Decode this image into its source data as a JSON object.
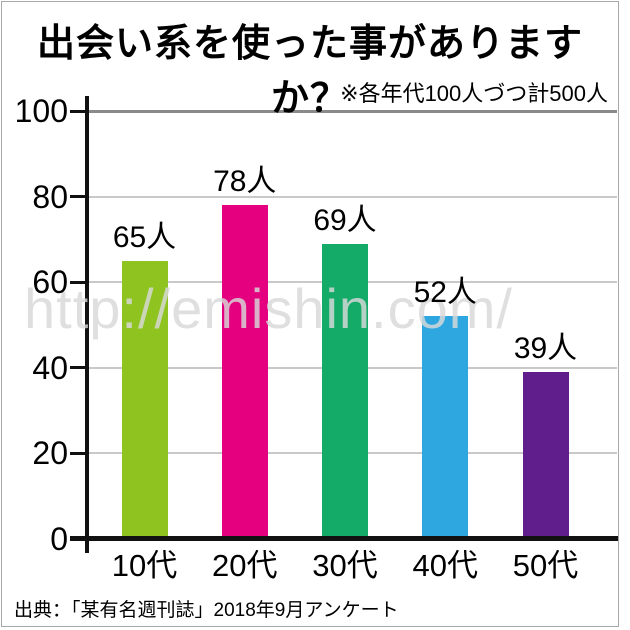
{
  "page": {
    "title": "出会い系を使った事がありますか？",
    "note": "※各年代100人づつ計500人",
    "watermark": "http://emishin.com/",
    "source": "出典：「某有名週刊誌」2018年9月アンケート"
  },
  "chart_data": {
    "type": "bar",
    "title": "出会い系を使った事がありますか？",
    "subtitle_note": "※各年代100人づつ計500人",
    "categories": [
      "10代",
      "20代",
      "30代",
      "40代",
      "50代"
    ],
    "values": [
      65,
      78,
      69,
      52,
      39
    ],
    "value_labels": [
      "65人",
      "78人",
      "69人",
      "52人",
      "39人"
    ],
    "unit_suffix": "人",
    "bar_colors": [
      "#8FC31F",
      "#E4007F",
      "#14AA67",
      "#2EA7E0",
      "#5F1E8C"
    ],
    "xlabel": "",
    "ylabel": "",
    "ylim": [
      0,
      100
    ],
    "yticks": [
      0,
      20,
      40,
      60,
      80,
      100
    ],
    "grid": "horizontal",
    "legend": "none",
    "source": "出典：「某有名週刊誌」2018年9月アンケート",
    "watermark": "http://emishin.com/"
  },
  "colors": {
    "grid_top": "#8A8A8A",
    "grid_minor": "#C9C9C9",
    "axis": "#111111",
    "watermark": "#D9D9D9",
    "frame_border": "#A9A9A9"
  }
}
